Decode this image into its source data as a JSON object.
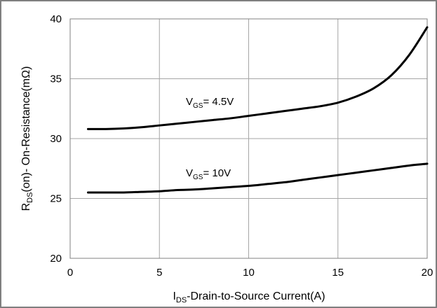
{
  "chart_data": {
    "type": "line",
    "title": "",
    "xlabel": {
      "main": "I",
      "sub": "DS",
      "rest": "-Drain-to-Source  Current(A)"
    },
    "ylabel": {
      "main": "R",
      "sub": "DS",
      "rest": "(on)- On-Resistance(mΩ)"
    },
    "xlim": [
      0,
      20
    ],
    "ylim": [
      20,
      40
    ],
    "xticks": [
      "0",
      "5",
      "10",
      "15",
      "20"
    ],
    "yticks": [
      "20",
      "25",
      "30",
      "35",
      "40"
    ],
    "grid": true,
    "series": [
      {
        "name": {
          "main": "V",
          "sub": "GS",
          "rest": "= 4.5V"
        },
        "x": [
          1,
          2,
          3,
          4,
          5,
          6,
          7,
          8,
          9,
          10,
          11,
          12,
          13,
          14,
          15,
          16,
          17,
          18,
          19,
          20
        ],
        "y": [
          30.8,
          30.8,
          30.85,
          30.95,
          31.1,
          31.25,
          31.4,
          31.55,
          31.7,
          31.9,
          32.1,
          32.3,
          32.5,
          32.7,
          33.0,
          33.5,
          34.2,
          35.3,
          37.0,
          39.3
        ]
      },
      {
        "name": {
          "main": "V",
          "sub": "GS",
          "rest": "= 10V"
        },
        "x": [
          1,
          2,
          3,
          4,
          5,
          6,
          7,
          8,
          9,
          10,
          11,
          12,
          13,
          14,
          15,
          16,
          17,
          18,
          19,
          20
        ],
        "y": [
          25.5,
          25.5,
          25.5,
          25.55,
          25.6,
          25.7,
          25.75,
          25.85,
          25.95,
          26.05,
          26.2,
          26.35,
          26.55,
          26.75,
          26.95,
          27.15,
          27.35,
          27.55,
          27.75,
          27.9
        ]
      }
    ],
    "colors": {
      "line": "#000000",
      "grid": "#a6a6a6",
      "frame": "#7f7f7f"
    }
  }
}
